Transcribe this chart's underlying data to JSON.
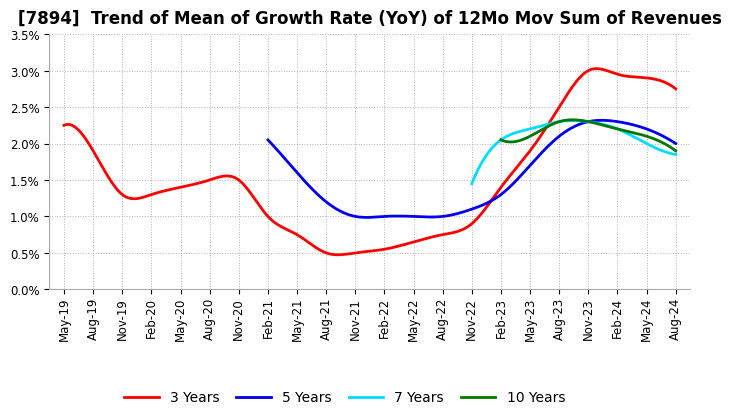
{
  "title": "[7894]  Trend of Mean of Growth Rate (YoY) of 12Mo Mov Sum of Revenues",
  "ylim": [
    0.0,
    0.035
  ],
  "yticks": [
    0.0,
    0.005,
    0.01,
    0.015,
    0.02,
    0.025,
    0.03,
    0.035
  ],
  "ytick_labels": [
    "0.0%",
    "0.5%",
    "1.0%",
    "1.5%",
    "2.0%",
    "2.5%",
    "3.0%",
    "3.5%"
  ],
  "x_tick_labels": [
    "May-19",
    "Aug-19",
    "Nov-19",
    "Feb-20",
    "May-20",
    "Aug-20",
    "Nov-20",
    "Feb-21",
    "May-21",
    "Aug-21",
    "Nov-21",
    "Feb-22",
    "May-22",
    "Aug-22",
    "Nov-22",
    "Feb-23",
    "May-23",
    "Aug-23",
    "Nov-23",
    "Feb-24",
    "May-24",
    "Aug-24"
  ],
  "background_color": "#ffffff",
  "grid_color": "#aaaaaa",
  "series_3yr": {
    "label": "3 Years",
    "color": "#ff0000",
    "x": [
      0,
      1,
      2,
      3,
      4,
      5,
      6,
      7,
      8,
      9,
      10,
      11,
      12,
      13,
      14,
      15,
      16,
      17,
      18,
      19,
      20,
      21
    ],
    "y": [
      0.0225,
      0.019,
      0.013,
      0.013,
      0.014,
      0.015,
      0.015,
      0.01,
      0.0075,
      0.005,
      0.005,
      0.0055,
      0.0065,
      0.0075,
      0.009,
      0.014,
      0.019,
      0.025,
      0.03,
      0.0295,
      0.029,
      0.0275
    ]
  },
  "series_5yr": {
    "label": "5 Years",
    "color": "#0000ee",
    "x": [
      7,
      8,
      9,
      10,
      11,
      12,
      13,
      14,
      15,
      16,
      17,
      18,
      19,
      20,
      21
    ],
    "y": [
      0.0205,
      0.016,
      0.012,
      0.01,
      0.01,
      0.01,
      0.01,
      0.011,
      0.013,
      0.017,
      0.021,
      0.023,
      0.023,
      0.022,
      0.02
    ]
  },
  "series_7yr": {
    "label": "7 Years",
    "color": "#00ddff",
    "x": [
      14,
      15,
      16,
      17,
      18,
      19,
      20,
      21
    ],
    "y": [
      0.0145,
      0.0205,
      0.022,
      0.023,
      0.023,
      0.022,
      0.02,
      0.0185
    ]
  },
  "series_10yr": {
    "label": "10 Years",
    "color": "#007700",
    "x": [
      15,
      16,
      17,
      18,
      19,
      20,
      21
    ],
    "y": [
      0.0205,
      0.021,
      0.023,
      0.023,
      0.022,
      0.021,
      0.019
    ]
  },
  "title_fontsize": 12,
  "tick_fontsize": 8.5,
  "legend_fontsize": 10
}
